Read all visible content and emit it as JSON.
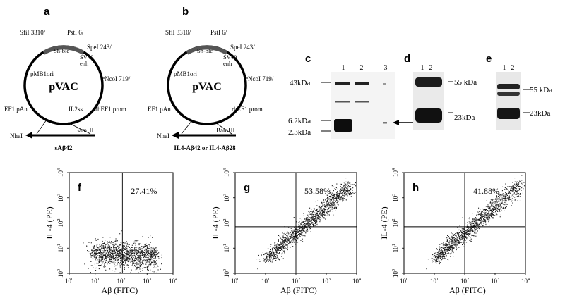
{
  "panels": {
    "a": {
      "letter": "a",
      "center_label": "pVAC",
      "site_labels": {
        "sfi": "SfiI 3310/",
        "pst": "PstI 6/",
        "shble": "Sh-ble",
        "spe": "SpeI 243/",
        "sv40": "SV40",
        "enh": "enh",
        "nco": "NcoI 719/",
        "pmb": "pMB1ori",
        "ef1pan": "EF1 pAn",
        "il2": "IL2ss",
        "rhef1": "rhEF1 prom",
        "nhe": "NheI",
        "bam": "BamHI"
      },
      "insert": "sAβ42"
    },
    "b": {
      "letter": "b",
      "center_label": "pVAC",
      "site_labels": {
        "sfi": "SfiI 3310/",
        "pst": "PstI 6/",
        "shble": "Sh-ble",
        "spe": "SpeI 243/",
        "sv40": "SV40",
        "enh": "enh",
        "nco": "NcoI 719/",
        "pmb": "pMB1ori",
        "ef1pan": "EF1 pAn",
        "rhef1": "rhEF1 prom",
        "nhe": "NheI",
        "bam": "BamHI"
      },
      "insert": "IL4-Aβ42 or IL4-Aβ28"
    },
    "c": {
      "letter": "c",
      "lanes": [
        "1",
        "2",
        "3"
      ],
      "markers": [
        "43kDa",
        "6.2kDa",
        "2.3kDa"
      ]
    },
    "d": {
      "letter": "d",
      "lanes": [
        "1",
        "2"
      ],
      "markers": [
        "55 kDa",
        "23kDa"
      ]
    },
    "e": {
      "letter": "e",
      "lanes": [
        "1",
        "2"
      ],
      "markers": [
        "55 kDa",
        "23kDa"
      ]
    },
    "flow": {
      "y_axis_label": "IL-4 (PE)",
      "x_axis_label": "Aβ (FITC)",
      "tick_base": "10",
      "tick_exponents": [
        "0",
        "1",
        "2",
        "3",
        "4"
      ],
      "plots": [
        {
          "letter": "f",
          "percent": "27.41%",
          "x_range_log": [
            0,
            4
          ],
          "y_range_log": [
            0,
            4
          ],
          "population": "IL-4 negative, Aβ spread from 10^0.8 to 10^3.3"
        },
        {
          "letter": "g",
          "percent": "53.58%",
          "x_range_log": [
            0,
            4
          ],
          "y_range_log": [
            0,
            4
          ],
          "population": "diagonal double-positive"
        },
        {
          "letter": "h",
          "percent": "41.88%",
          "x_range_log": [
            0,
            4
          ],
          "y_range_log": [
            0,
            4
          ],
          "population": "diagonal double-positive"
        }
      ]
    }
  }
}
